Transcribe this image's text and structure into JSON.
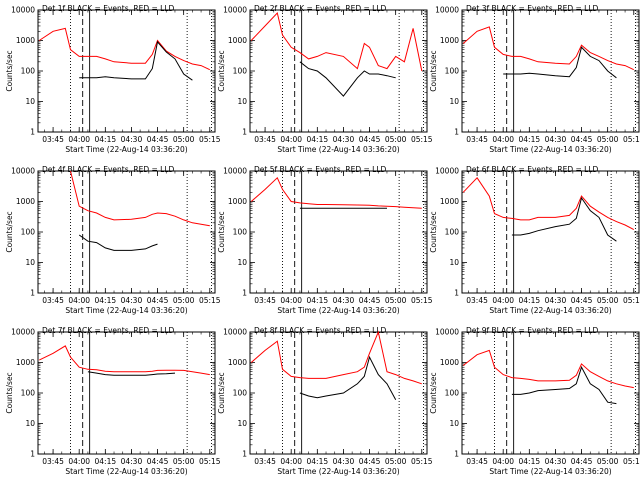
{
  "colors": {
    "events": "#000000",
    "lld": "#ff0000",
    "axes": "#000000",
    "background": "#ffffff"
  },
  "axes": {
    "ylabel": "Counts/sec",
    "xlabel": "Start Time (22-Aug-14 03:36:20)",
    "xticks": [
      "03:45",
      "04:00",
      "04:15",
      "04:30",
      "04:45",
      "05:00",
      "05:15"
    ],
    "yticks": [
      "1",
      "10",
      "100",
      "1000",
      "10000"
    ]
  },
  "chart_data": [
    {
      "type": "line",
      "title": "Det 1f BLACK = Events, RED = LLD",
      "xlim": [
        "03:36:20",
        "05:18:00"
      ],
      "ylim": [
        1,
        10000
      ],
      "yscale": "log",
      "x": [
        "03:37",
        "03:45",
        "03:52",
        "03:55",
        "04:00",
        "04:05",
        "04:10",
        "04:15",
        "04:20",
        "04:30",
        "04:38",
        "04:42",
        "04:45",
        "04:50",
        "04:55",
        "05:00",
        "05:05",
        "05:10",
        "05:15"
      ],
      "series": [
        {
          "name": "LLD",
          "values": [
            1000,
            2000,
            2500,
            500,
            300,
            300,
            300,
            250,
            200,
            180,
            180,
            350,
            1000,
            450,
            300,
            220,
            170,
            150,
            110
          ]
        },
        {
          "name": "Events",
          "values": [
            null,
            null,
            null,
            null,
            60,
            60,
            60,
            65,
            60,
            55,
            55,
            120,
            900,
            420,
            250,
            80,
            50,
            null,
            null
          ]
        }
      ]
    },
    {
      "type": "line",
      "title": "Det 2f BLACK = Events, RED = LLD",
      "xlim": [
        "03:36:20",
        "05:18:00"
      ],
      "ylim": [
        1,
        10000
      ],
      "yscale": "log",
      "x": [
        "03:37",
        "03:45",
        "03:52",
        "03:55",
        "04:00",
        "04:05",
        "04:10",
        "04:15",
        "04:20",
        "04:30",
        "04:38",
        "04:42",
        "04:45",
        "04:50",
        "04:55",
        "05:00",
        "05:05",
        "05:10",
        "05:15"
      ],
      "series": [
        {
          "name": "LLD",
          "values": [
            1000,
            3000,
            8000,
            1500,
            600,
            400,
            250,
            300,
            400,
            300,
            120,
            800,
            600,
            150,
            120,
            300,
            200,
            2500,
            100
          ]
        },
        {
          "name": "Events",
          "values": [
            null,
            null,
            null,
            null,
            null,
            200,
            120,
            100,
            60,
            15,
            60,
            100,
            80,
            80,
            70,
            60,
            null,
            null,
            null
          ]
        }
      ]
    },
    {
      "type": "line",
      "title": "Det 3f BLACK = Events, RED = LLD",
      "xlim": [
        "03:36:20",
        "05:18:00"
      ],
      "ylim": [
        1,
        10000
      ],
      "yscale": "log",
      "x": [
        "03:37",
        "03:45",
        "03:52",
        "03:55",
        "04:00",
        "04:05",
        "04:10",
        "04:15",
        "04:20",
        "04:30",
        "04:38",
        "04:42",
        "04:45",
        "04:50",
        "04:55",
        "05:00",
        "05:05",
        "05:10",
        "05:15"
      ],
      "series": [
        {
          "name": "LLD",
          "values": [
            800,
            2000,
            2800,
            600,
            350,
            300,
            300,
            250,
            200,
            180,
            170,
            300,
            700,
            400,
            300,
            220,
            170,
            150,
            110
          ]
        },
        {
          "name": "Events",
          "values": [
            null,
            null,
            null,
            null,
            80,
            80,
            80,
            85,
            80,
            70,
            65,
            130,
            600,
            300,
            220,
            100,
            60,
            null,
            null
          ]
        }
      ]
    },
    {
      "type": "line",
      "title": "Det 4f BLACK = Events, RED = LLD",
      "xlim": [
        "03:36:20",
        "05:18:00"
      ],
      "ylim": [
        1,
        10000
      ],
      "yscale": "log",
      "x": [
        "03:37",
        "03:45",
        "03:52",
        "03:55",
        "04:00",
        "04:05",
        "04:10",
        "04:15",
        "04:20",
        "04:30",
        "04:38",
        "04:42",
        "04:45",
        "04:50",
        "04:55",
        "05:00",
        "05:05",
        "05:10",
        "05:15"
      ],
      "series": [
        {
          "name": "LLD",
          "values": [
            null,
            null,
            null,
            10000,
            700,
            500,
            420,
            300,
            250,
            260,
            300,
            380,
            420,
            400,
            330,
            250,
            200,
            180,
            160
          ]
        },
        {
          "name": "Events",
          "values": [
            null,
            null,
            null,
            null,
            80,
            50,
            45,
            30,
            25,
            25,
            28,
            35,
            40,
            null,
            null,
            null,
            null,
            null,
            null
          ]
        }
      ]
    },
    {
      "type": "line",
      "title": "Det 5f BLACK = Events, RED = LLD",
      "xlim": [
        "03:36:20",
        "05:18:00"
      ],
      "ylim": [
        1,
        10000
      ],
      "yscale": "log",
      "x": [
        "03:37",
        "03:45",
        "03:52",
        "03:55",
        "04:00",
        "04:05",
        "04:10",
        "04:15",
        "04:20",
        "04:30",
        "04:38",
        "04:42",
        "04:45",
        "04:50",
        "04:55",
        "05:00",
        "05:05",
        "05:10",
        "05:15"
      ],
      "series": [
        {
          "name": "LLD",
          "values": [
            1000,
            2500,
            6000,
            2500,
            1000,
            900,
            850,
            800,
            800,
            780,
            770,
            760,
            750,
            720,
            700,
            680,
            650,
            620,
            600
          ]
        },
        {
          "name": "Events",
          "values": [
            null,
            null,
            null,
            null,
            null,
            600,
            600,
            600,
            600,
            600,
            600,
            600,
            600,
            600,
            600,
            null,
            null,
            null,
            null
          ]
        }
      ]
    },
    {
      "type": "line",
      "title": "Det 6f BLACK = Events, RED = LLD",
      "xlim": [
        "03:36:20",
        "05:18:00"
      ],
      "ylim": [
        1,
        10000
      ],
      "yscale": "log",
      "x": [
        "03:37",
        "03:45",
        "03:52",
        "03:55",
        "04:00",
        "04:05",
        "04:10",
        "04:15",
        "04:20",
        "04:30",
        "04:38",
        "04:42",
        "04:45",
        "04:50",
        "04:55",
        "05:00",
        "05:05",
        "05:10",
        "05:15"
      ],
      "series": [
        {
          "name": "LLD",
          "values": [
            2000,
            6000,
            1500,
            400,
            300,
            280,
            250,
            250,
            300,
            300,
            350,
            600,
            1500,
            700,
            450,
            300,
            220,
            170,
            120
          ]
        },
        {
          "name": "Events",
          "values": [
            null,
            null,
            null,
            null,
            null,
            80,
            80,
            90,
            110,
            150,
            180,
            280,
            1300,
            500,
            300,
            80,
            50,
            null,
            null
          ]
        }
      ]
    },
    {
      "type": "line",
      "title": "Det 7f BLACK = Events, RED = LLD",
      "xlim": [
        "03:36:20",
        "05:18:00"
      ],
      "ylim": [
        1,
        10000
      ],
      "yscale": "log",
      "x": [
        "03:37",
        "03:45",
        "03:52",
        "03:55",
        "04:00",
        "04:05",
        "04:10",
        "04:15",
        "04:20",
        "04:30",
        "04:38",
        "04:42",
        "04:45",
        "04:50",
        "04:55",
        "05:00",
        "05:05",
        "05:10",
        "05:15"
      ],
      "series": [
        {
          "name": "LLD",
          "values": [
            1200,
            2000,
            3500,
            1500,
            700,
            600,
            580,
            520,
            500,
            500,
            500,
            520,
            550,
            560,
            560,
            550,
            500,
            450,
            400
          ]
        },
        {
          "name": "Events",
          "values": [
            null,
            null,
            null,
            null,
            null,
            500,
            450,
            400,
            380,
            380,
            380,
            400,
            420,
            430,
            450,
            null,
            null,
            null,
            null
          ]
        }
      ]
    },
    {
      "type": "line",
      "title": "Det 8f BLACK = Events, RED = LLD",
      "xlim": [
        "03:36:20",
        "05:18:00"
      ],
      "ylim": [
        1,
        10000
      ],
      "yscale": "log",
      "x": [
        "03:37",
        "03:45",
        "03:52",
        "03:55",
        "04:00",
        "04:05",
        "04:10",
        "04:15",
        "04:20",
        "04:30",
        "04:38",
        "04:42",
        "04:45",
        "04:50",
        "04:55",
        "05:00",
        "05:05",
        "05:10",
        "05:15"
      ],
      "series": [
        {
          "name": "LLD",
          "values": [
            1000,
            2500,
            5000,
            600,
            350,
            320,
            300,
            300,
            300,
            400,
            500,
            700,
            2000,
            10000,
            500,
            400,
            300,
            250,
            200
          ]
        },
        {
          "name": "Events",
          "values": [
            null,
            null,
            null,
            null,
            null,
            100,
            80,
            70,
            80,
            100,
            200,
            350,
            1500,
            400,
            200,
            60,
            null,
            null,
            null
          ]
        }
      ]
    },
    {
      "type": "line",
      "title": "Det 9f BLACK = Events, RED = LLD",
      "xlim": [
        "03:36:20",
        "05:18:00"
      ],
      "ylim": [
        1,
        10000
      ],
      "yscale": "log",
      "x": [
        "03:37",
        "03:45",
        "03:52",
        "03:55",
        "04:00",
        "04:05",
        "04:10",
        "04:15",
        "04:20",
        "04:30",
        "04:38",
        "04:42",
        "04:45",
        "04:50",
        "04:55",
        "05:00",
        "05:05",
        "05:10",
        "05:15"
      ],
      "series": [
        {
          "name": "LLD",
          "values": [
            800,
            1800,
            2500,
            700,
            400,
            320,
            300,
            280,
            250,
            250,
            260,
            380,
            900,
            500,
            350,
            250,
            200,
            170,
            150
          ]
        },
        {
          "name": "Events",
          "values": [
            null,
            null,
            null,
            null,
            null,
            90,
            90,
            100,
            120,
            130,
            140,
            200,
            700,
            200,
            130,
            50,
            45,
            null,
            null
          ]
        }
      ]
    }
  ]
}
